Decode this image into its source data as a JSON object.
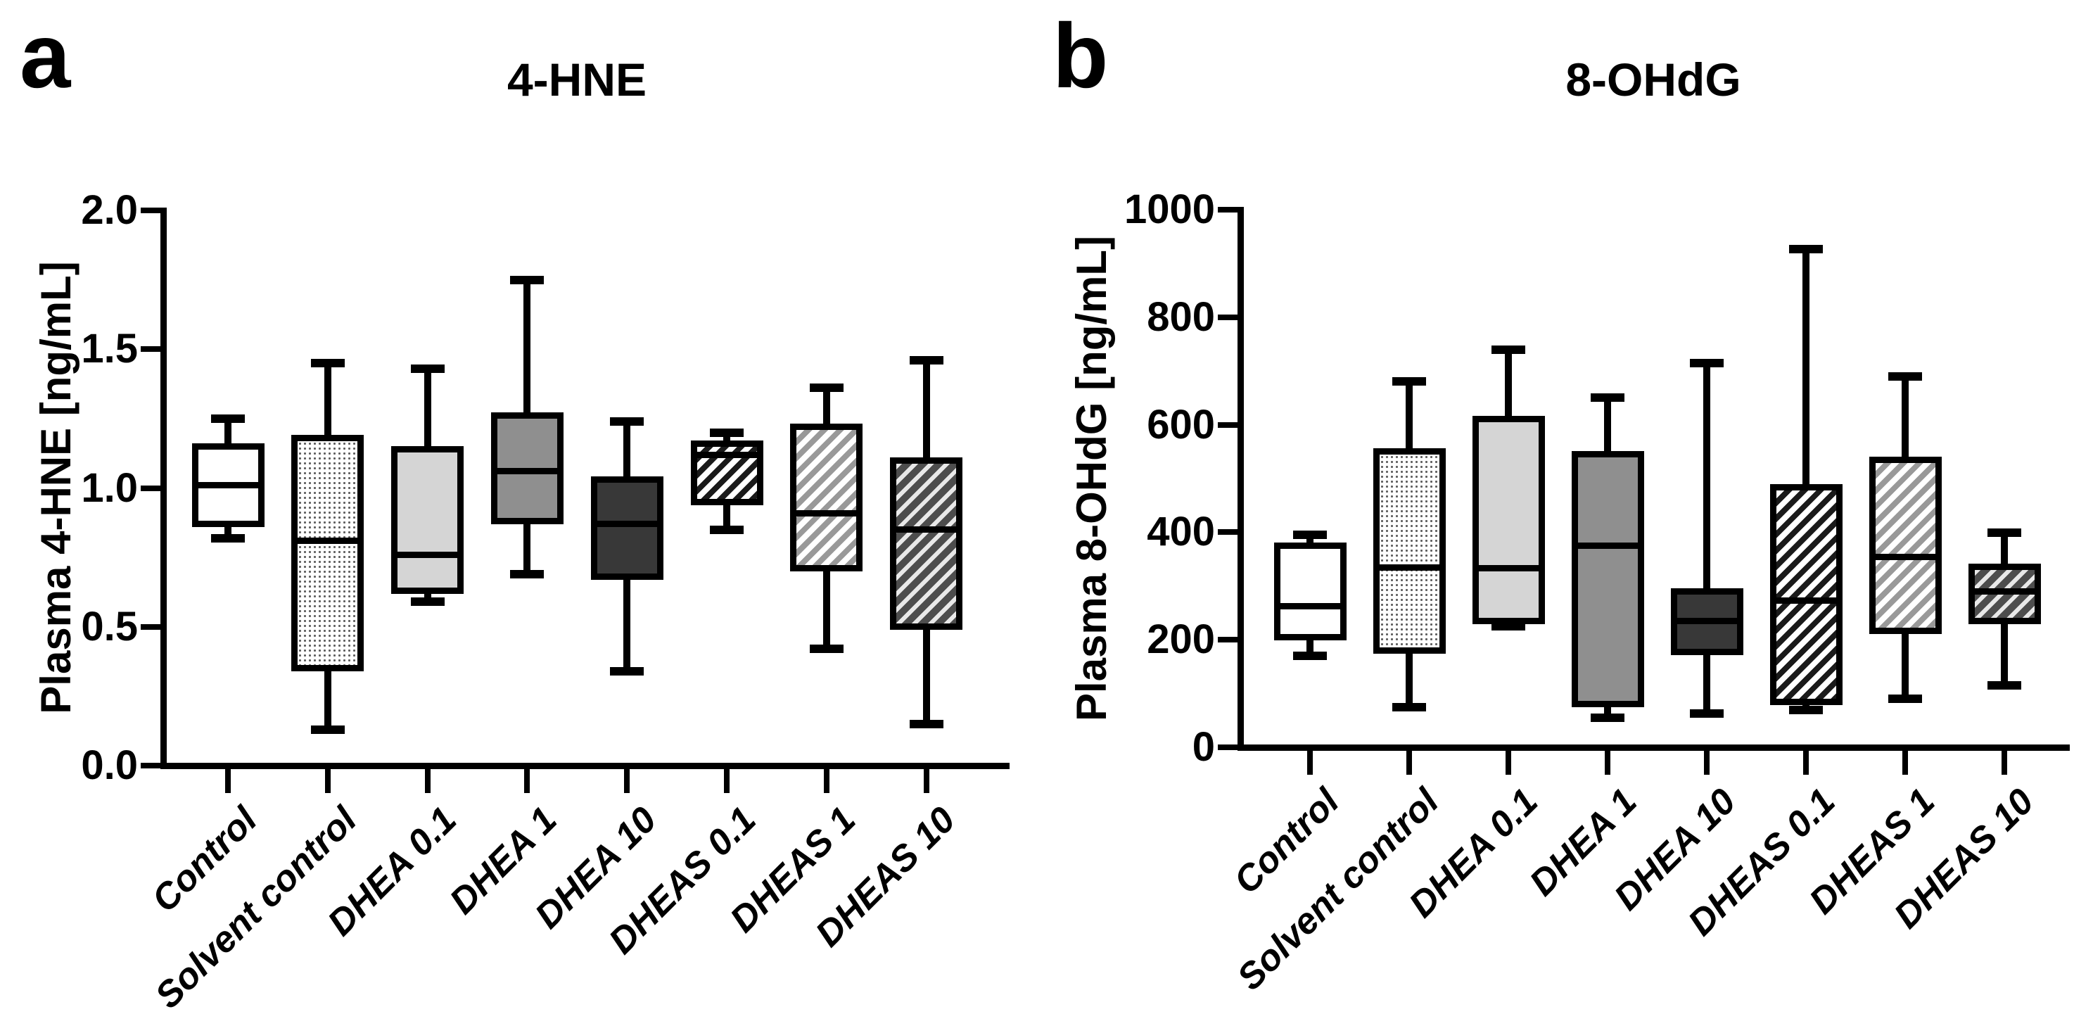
{
  "figure": {
    "background": "#ffffff",
    "ink": "#000000"
  },
  "chart_data": [
    {
      "type": "box",
      "panel_letter": "a",
      "title": "4-HNE",
      "ylabel": "Plasma 4-HNE [ng/mL]",
      "ylim": [
        0,
        2.0
      ],
      "grid": false,
      "legend": "none",
      "ytick_values": [
        0,
        0.5,
        1.0,
        1.5,
        2.0
      ],
      "ytick_labels": [
        "0.0",
        "0.5",
        "1.0",
        "1.5",
        "2.0"
      ],
      "categories": [
        "Control",
        "Solvent control",
        "DHEA 0.1",
        "DHEA 1",
        "DHEA 10",
        "DHEAS 0.1",
        "DHEAS 1",
        "DHEAS 10"
      ],
      "series": [
        {
          "category": "Control",
          "pattern": "white",
          "min": 0.82,
          "q1": 0.87,
          "median": 1.01,
          "q3": 1.15,
          "max": 1.25
        },
        {
          "category": "Solvent control",
          "pattern": "stipple",
          "min": 0.13,
          "q1": 0.35,
          "median": 0.81,
          "q3": 1.18,
          "max": 1.45
        },
        {
          "category": "DHEA 0.1",
          "pattern": "light-gray",
          "min": 0.59,
          "q1": 0.63,
          "median": 0.76,
          "q3": 1.14,
          "max": 1.43
        },
        {
          "category": "DHEA 1",
          "pattern": "gray",
          "min": 0.69,
          "q1": 0.88,
          "median": 1.06,
          "q3": 1.26,
          "max": 1.75
        },
        {
          "category": "DHEA 10",
          "pattern": "dark-gray",
          "min": 0.34,
          "q1": 0.68,
          "median": 0.87,
          "q3": 1.03,
          "max": 1.24
        },
        {
          "category": "DHEAS 0.1",
          "pattern": "diag-hatch-black-on-white",
          "min": 0.85,
          "q1": 0.95,
          "median": 1.12,
          "q3": 1.16,
          "max": 1.2
        },
        {
          "category": "DHEAS 1",
          "pattern": "diag-hatch-gray-on-white",
          "min": 0.42,
          "q1": 0.71,
          "median": 0.91,
          "q3": 1.22,
          "max": 1.36
        },
        {
          "category": "DHEAS 10",
          "pattern": "diag-hatch-white-on-dark",
          "min": 0.15,
          "q1": 0.5,
          "median": 0.85,
          "q3": 1.1,
          "max": 1.46
        }
      ]
    },
    {
      "type": "box",
      "panel_letter": "b",
      "title": "8-OHdG",
      "ylabel": "Plasma 8-OHdG [ng/mL]",
      "ylim": [
        0,
        1000
      ],
      "grid": false,
      "legend": "none",
      "ytick_values": [
        0,
        200,
        400,
        600,
        800,
        1000
      ],
      "ytick_labels": [
        "0",
        "200",
        "400",
        "600",
        "800",
        "1000"
      ],
      "categories": [
        "Control",
        "Solvent control",
        "DHEA 0.1",
        "DHEA 1",
        "DHEA 10",
        "DHEAS 0.1",
        "DHEAS 1",
        "DHEAS 10"
      ],
      "series": [
        {
          "category": "Control",
          "pattern": "white",
          "min": 170,
          "q1": 205,
          "median": 263,
          "q3": 375,
          "max": 395
        },
        {
          "category": "Solvent control",
          "pattern": "stipple",
          "min": 75,
          "q1": 180,
          "median": 335,
          "q3": 550,
          "max": 680
        },
        {
          "category": "DHEA 0.1",
          "pattern": "light-gray",
          "min": 225,
          "q1": 235,
          "median": 333,
          "q3": 610,
          "max": 740
        },
        {
          "category": "DHEA 1",
          "pattern": "gray",
          "min": 55,
          "q1": 80,
          "median": 375,
          "q3": 545,
          "max": 650
        },
        {
          "category": "DHEA 10",
          "pattern": "dark-gray",
          "min": 63,
          "q1": 178,
          "median": 235,
          "q3": 290,
          "max": 715
        },
        {
          "category": "DHEAS 0.1",
          "pattern": "diag-hatch-black-on-white",
          "min": 70,
          "q1": 85,
          "median": 273,
          "q3": 483,
          "max": 927
        },
        {
          "category": "DHEAS 1",
          "pattern": "diag-hatch-gray-on-white",
          "min": 90,
          "q1": 217,
          "median": 354,
          "q3": 535,
          "max": 690
        },
        {
          "category": "DHEAS 10",
          "pattern": "diag-hatch-white-on-dark",
          "min": 115,
          "q1": 235,
          "median": 290,
          "q3": 336,
          "max": 399
        }
      ]
    }
  ]
}
